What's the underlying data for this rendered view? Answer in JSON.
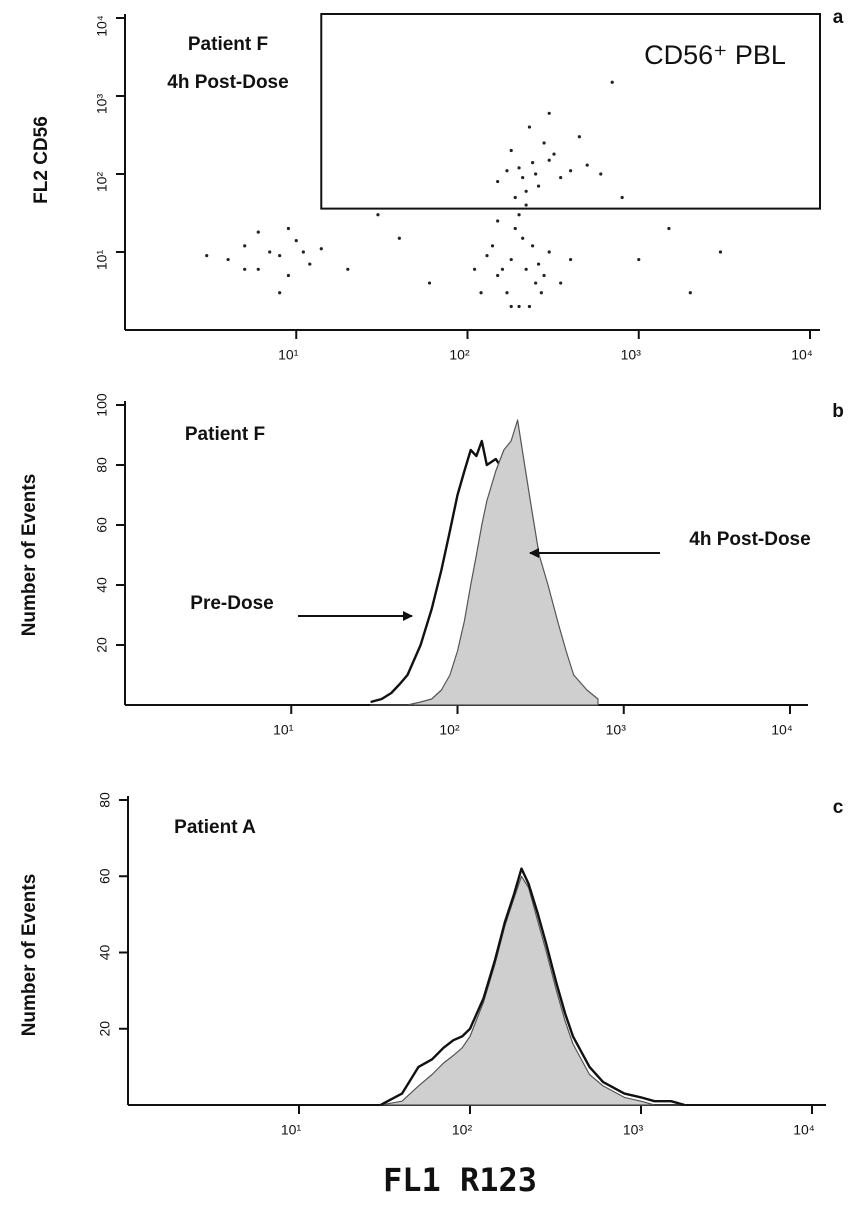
{
  "chart_data": [
    {
      "type": "scatter",
      "panel_label": "a",
      "ylabel": "FL2 CD56",
      "annotations": [
        "Patient F",
        "4h Post-Dose"
      ],
      "xscale": "log",
      "yscale": "log",
      "xlim": [
        1,
        10000
      ],
      "ylim": [
        1,
        10000
      ],
      "xticks": [
        {
          "value": 10,
          "label": "10¹"
        },
        {
          "value": 100,
          "label": "10²"
        },
        {
          "value": 1000,
          "label": "10³"
        },
        {
          "value": 10000,
          "label": "10⁴"
        }
      ],
      "yticks": [
        {
          "value": 10,
          "label": "10¹"
        },
        {
          "value": 100,
          "label": "10²"
        },
        {
          "value": 1000,
          "label": "10³"
        },
        {
          "value": 10000,
          "label": "10⁴"
        }
      ],
      "gate": {
        "label": "CD56⁺  PBL",
        "x": [
          14,
          10000
        ],
        "y": [
          36,
          10000
        ]
      },
      "color": "#222",
      "x": [
        4,
        5,
        6,
        7,
        8,
        9,
        10,
        12,
        6,
        8,
        11,
        5,
        9,
        14,
        3,
        120,
        150,
        180,
        200,
        220,
        250,
        300,
        140,
        170,
        210,
        260,
        190,
        230,
        160,
        280,
        130,
        350,
        200,
        240,
        180,
        110,
        400,
        220,
        150,
        270,
        150,
        200,
        250,
        300,
        350,
        180,
        220,
        280,
        400,
        500,
        230,
        260,
        320,
        190,
        450,
        240,
        600,
        170,
        300,
        210,
        20,
        40,
        60,
        1000,
        2000,
        3000,
        800,
        30,
        1500,
        700
      ],
      "y": [
        8,
        12,
        6,
        10,
        9,
        5,
        14,
        7,
        18,
        3,
        10,
        6,
        20,
        11,
        9,
        3,
        5,
        8,
        2,
        6,
        4,
        10,
        12,
        3,
        15,
        7,
        20,
        2,
        6,
        5,
        9,
        4,
        30,
        12,
        2,
        6,
        8,
        40,
        25,
        3,
        80,
        120,
        100,
        150,
        90,
        200,
        60,
        250,
        110,
        130,
        400,
        70,
        180,
        50,
        300,
        140,
        100,
        110,
        600,
        90,
        6,
        15,
        4,
        8,
        3,
        10,
        50,
        30,
        20,
        1500
      ]
    },
    {
      "type": "area",
      "panel_label": "b",
      "ylabel": "Number of Events",
      "annotations": [
        "Patient F"
      ],
      "xscale": "log",
      "yscale": "linear",
      "xlim": [
        1,
        10000
      ],
      "ylim": [
        0,
        100
      ],
      "xticks": [
        {
          "value": 10,
          "label": "10¹"
        },
        {
          "value": 100,
          "label": "10²"
        },
        {
          "value": 1000,
          "label": "10³"
        },
        {
          "value": 10000,
          "label": "10⁴"
        }
      ],
      "yticks": [
        20,
        40,
        60,
        80,
        100
      ],
      "x": [
        30,
        35,
        40,
        45,
        50,
        60,
        70,
        80,
        90,
        100,
        110,
        120,
        130,
        140,
        150,
        170,
        190,
        210,
        230,
        250,
        280,
        310,
        350,
        400,
        450,
        500,
        600,
        700
      ],
      "series": [
        {
          "name": "Pre-Dose",
          "color": "#111",
          "fill": null,
          "values": [
            1,
            2,
            4,
            7,
            10,
            20,
            32,
            45,
            58,
            70,
            78,
            85,
            83,
            88,
            80,
            82,
            78,
            75,
            65,
            55,
            45,
            35,
            25,
            18,
            12,
            7,
            3,
            1
          ]
        },
        {
          "name": "4h Post-Dose",
          "color": "#555",
          "fill": "#cfcfcf",
          "values": [
            0,
            0,
            0,
            0,
            0,
            1,
            2,
            5,
            10,
            18,
            28,
            40,
            50,
            60,
            68,
            78,
            85,
            88,
            95,
            82,
            65,
            50,
            40,
            28,
            18,
            10,
            5,
            2
          ]
        }
      ]
    },
    {
      "type": "area",
      "panel_label": "c",
      "ylabel": "Number of Events",
      "xlabel": "FL1   R123",
      "annotations": [
        "Patient A"
      ],
      "xscale": "log",
      "yscale": "linear",
      "xlim": [
        1,
        10000
      ],
      "ylim": [
        0,
        80
      ],
      "xticks": [
        {
          "value": 10,
          "label": "10¹"
        },
        {
          "value": 100,
          "label": "10²"
        },
        {
          "value": 1000,
          "label": "10³"
        },
        {
          "value": 10000,
          "label": "10⁴"
        }
      ],
      "yticks": [
        20,
        40,
        60,
        80
      ],
      "x": [
        30,
        40,
        50,
        60,
        70,
        80,
        90,
        100,
        120,
        140,
        160,
        180,
        200,
        220,
        250,
        280,
        320,
        360,
        400,
        500,
        600,
        800,
        1000,
        1200,
        1500,
        1800
      ],
      "series": [
        {
          "color": "#555",
          "fill": "#cfcfcf",
          "values": [
            0,
            1,
            5,
            8,
            11,
            13,
            15,
            18,
            27,
            37,
            47,
            54,
            60,
            57,
            48,
            40,
            30,
            22,
            16,
            8,
            5,
            2,
            1,
            0,
            0,
            0
          ]
        },
        {
          "color": "#111",
          "fill": null,
          "values": [
            0,
            3,
            10,
            12,
            15,
            17,
            18,
            20,
            28,
            38,
            48,
            55,
            62,
            58,
            50,
            42,
            32,
            24,
            18,
            10,
            6,
            3,
            2,
            1,
            1,
            0
          ]
        }
      ]
    }
  ]
}
